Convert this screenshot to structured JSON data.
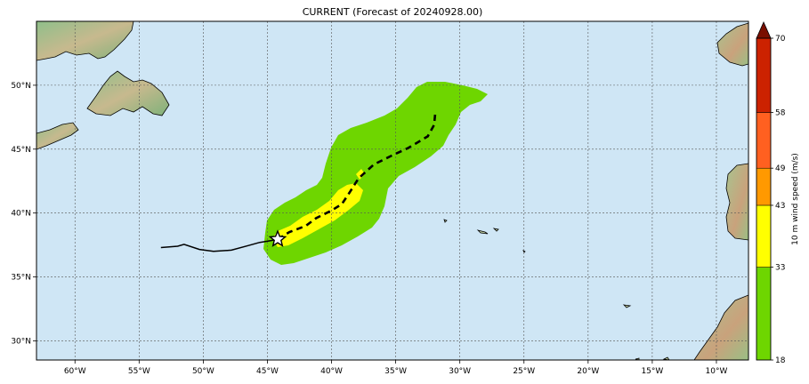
{
  "map": {
    "title": "CURRENT (Forecast of 20240928.00)",
    "lon_labels": [
      "60°W",
      "55°W",
      "50°W",
      "45°W",
      "40°W",
      "35°W",
      "30°W",
      "25°W",
      "20°W",
      "15°W",
      "10°W"
    ],
    "lat_labels": [
      "50°N",
      "45°N",
      "40°N",
      "35°N",
      "30°N"
    ],
    "extent": {
      "lon_min": -63,
      "lon_max": -7.5,
      "lat_min": 28.5,
      "lat_max": 55
    },
    "grid": true,
    "ocean_color": "#cfe6f5",
    "track_past": [
      [
        -53.3,
        37.3
      ],
      [
        -52,
        37.4
      ],
      [
        -51.5,
        37.55
      ],
      [
        -50.3,
        37.15
      ],
      [
        -49.2,
        37.0
      ],
      [
        -47.8,
        37.1
      ],
      [
        -46.5,
        37.45
      ],
      [
        -45.6,
        37.7
      ],
      [
        -44.7,
        37.85
      ],
      [
        -44.2,
        37.95
      ]
    ],
    "track_forecast": [
      [
        -44.2,
        37.95
      ],
      [
        -43.3,
        38.5
      ],
      [
        -42.0,
        39.0
      ],
      [
        -41.2,
        39.6
      ],
      [
        -40.0,
        40.2
      ],
      [
        -39.2,
        40.7
      ],
      [
        -38.6,
        41.6
      ],
      [
        -37.9,
        42.7
      ],
      [
        -36.7,
        43.8
      ],
      [
        -35.3,
        44.5
      ],
      [
        -34.0,
        45.1
      ],
      [
        -32.5,
        46.0
      ],
      [
        -32.0,
        46.9
      ],
      [
        -31.9,
        48.0
      ]
    ],
    "current_position": [
      -44.2,
      37.95
    ]
  },
  "colorbar": {
    "label": "10 m wind speed (m/s)",
    "tick_labels": [
      "18",
      "33",
      "43",
      "49",
      "58",
      "70"
    ],
    "bins": [
      {
        "from": 18,
        "to": 33,
        "color": "#6ed600"
      },
      {
        "from": 33,
        "to": 43,
        "color": "#ffff00"
      },
      {
        "from": 43,
        "to": 49,
        "color": "#ff9900"
      },
      {
        "from": 49,
        "to": 58,
        "color": "#ff6020"
      },
      {
        "from": 58,
        "to": 70,
        "color": "#cc2200"
      }
    ],
    "extend_color": "#7a0f00"
  },
  "wind_swath": {
    "band_18_33_color": "#6ed600",
    "band_33_43_color": "#ffff00"
  }
}
